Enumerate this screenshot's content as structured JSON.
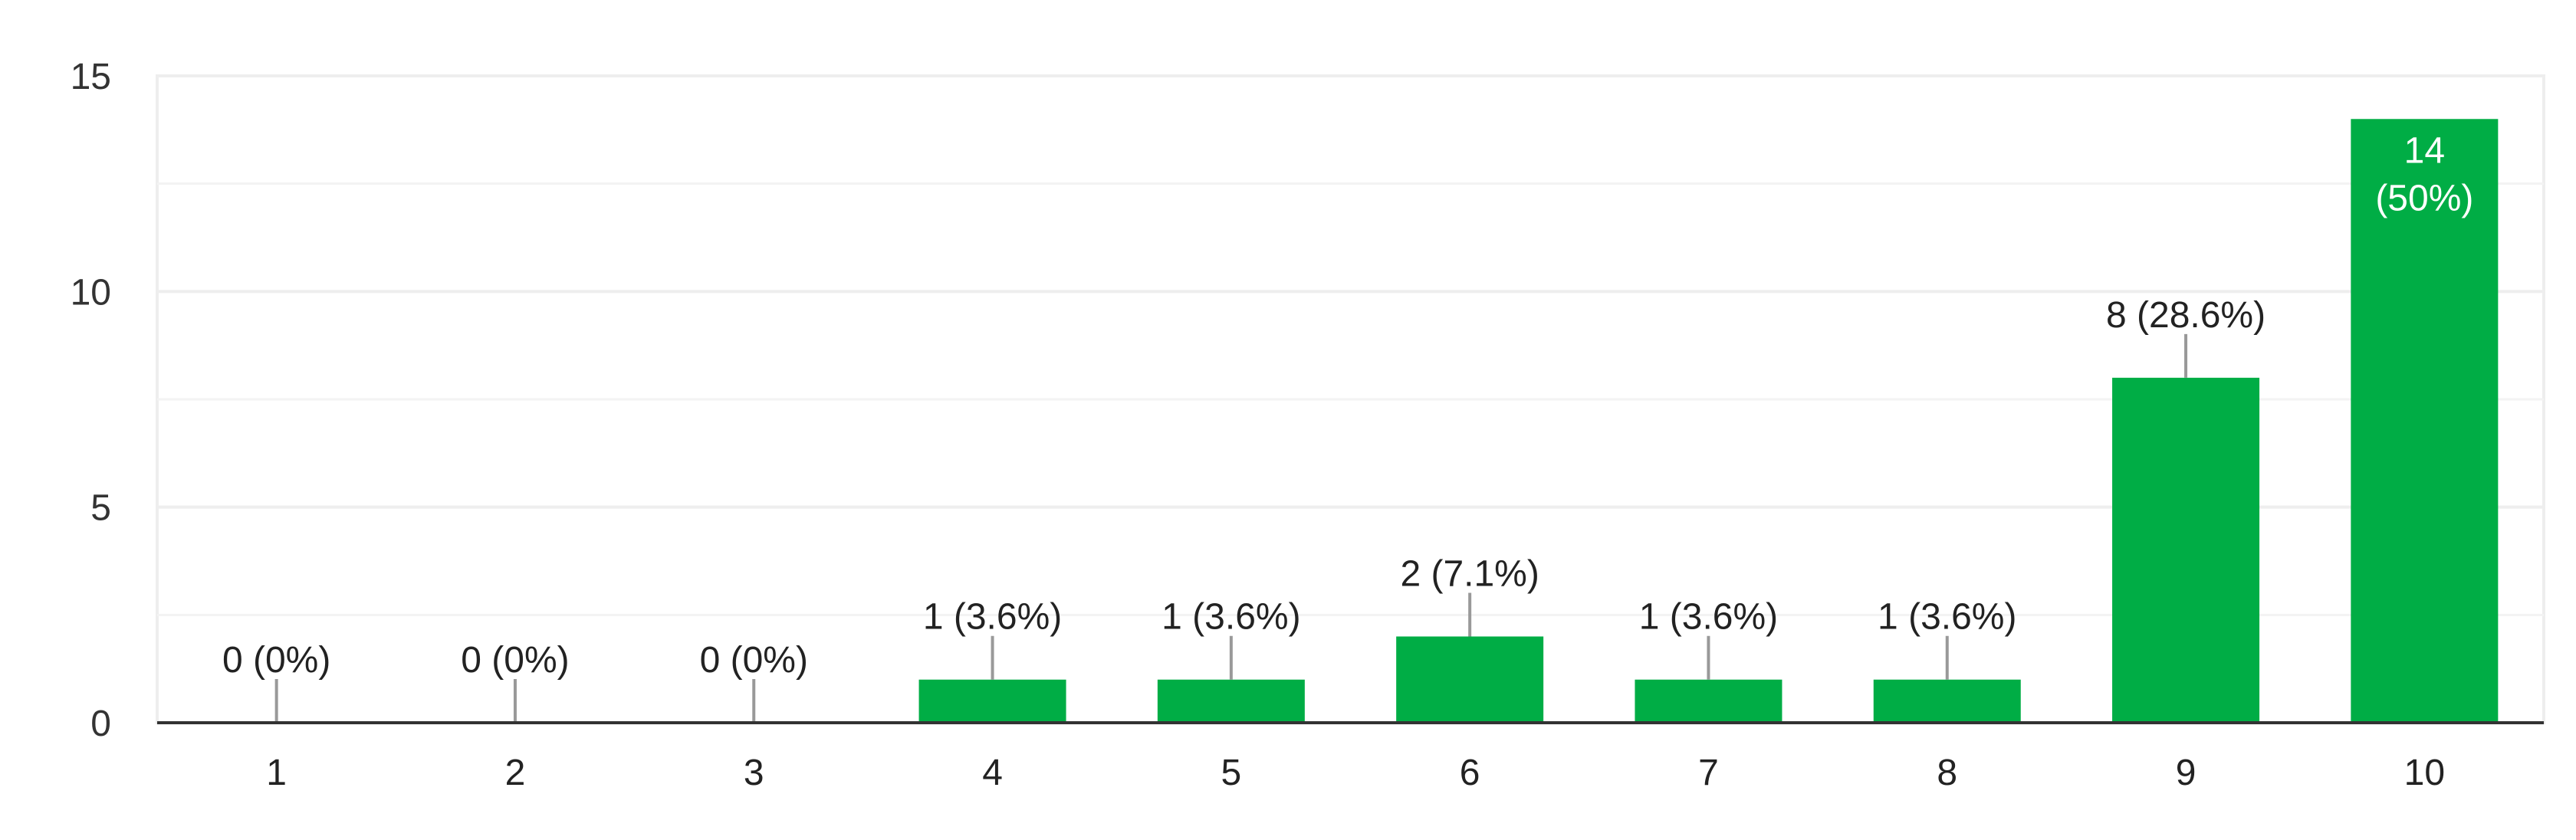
{
  "chart_data": {
    "type": "bar",
    "title": "",
    "xlabel": "",
    "ylabel": "",
    "categories": [
      "1",
      "2",
      "3",
      "4",
      "5",
      "6",
      "7",
      "8",
      "9",
      "10"
    ],
    "values": [
      0,
      0,
      0,
      1,
      1,
      2,
      1,
      1,
      8,
      14
    ],
    "data_labels": [
      "0 (0%)",
      "0 (0%)",
      "0 (0%)",
      "1 (3.6%)",
      "1 (3.6%)",
      "2 (7.1%)",
      "1 (3.6%)",
      "1 (3.6%)",
      "8 (28.6%)",
      "14 (50%)"
    ],
    "ylim": [
      0,
      15
    ],
    "yticks": [
      0,
      5,
      10,
      15
    ],
    "minor_gridlines": [
      2.5,
      7.5,
      12.5
    ],
    "grid": true,
    "legend": "none",
    "colors": {
      "bar": "#00ad45",
      "text": "#222222",
      "grid": "#eeeeee",
      "axis": "#333333",
      "leader": "#999999"
    }
  }
}
